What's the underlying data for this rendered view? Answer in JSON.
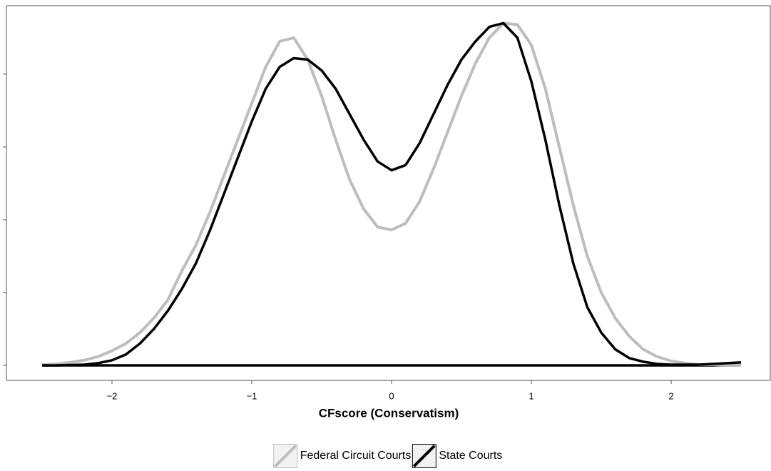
{
  "chart_data": {
    "type": "line",
    "xlabel": "CFscore (Conservatism)",
    "x": [
      -2.5,
      -2.4,
      -2.3,
      -2.2,
      -2.1,
      -2.0,
      -1.9,
      -1.8,
      -1.7,
      -1.6,
      -1.5,
      -1.4,
      -1.3,
      -1.2,
      -1.1,
      -1.0,
      -0.9,
      -0.8,
      -0.7,
      -0.6,
      -0.5,
      -0.4,
      -0.3,
      -0.2,
      -0.1,
      0,
      0.1,
      0.2,
      0.3,
      0.4,
      0.5,
      0.6,
      0.7,
      0.8,
      0.9,
      1.0,
      1.1,
      1.2,
      1.3,
      1.4,
      1.5,
      1.6,
      1.7,
      1.8,
      1.9,
      2.0,
      2.1,
      2.2,
      2.3,
      2.4,
      2.5
    ],
    "series": [
      {
        "name": "Federal Circuit Courts",
        "color": "#bdbdbd",
        "values": [
          0.001,
          0.002,
          0.004,
          0.007,
          0.012,
          0.02,
          0.03,
          0.045,
          0.065,
          0.09,
          0.13,
          0.165,
          0.21,
          0.26,
          0.31,
          0.36,
          0.41,
          0.445,
          0.45,
          0.42,
          0.37,
          0.31,
          0.255,
          0.215,
          0.19,
          0.186,
          0.195,
          0.225,
          0.27,
          0.32,
          0.37,
          0.415,
          0.45,
          0.47,
          0.468,
          0.44,
          0.38,
          0.3,
          0.22,
          0.15,
          0.1,
          0.065,
          0.04,
          0.022,
          0.012,
          0.006,
          0.003,
          0.001,
          0.001,
          0,
          0
        ]
      },
      {
        "name": "State Courts",
        "color": "#000000",
        "values": [
          0,
          0,
          0.0005,
          0.001,
          0.003,
          0.007,
          0.015,
          0.03,
          0.05,
          0.075,
          0.105,
          0.14,
          0.185,
          0.235,
          0.285,
          0.335,
          0.38,
          0.41,
          0.422,
          0.42,
          0.405,
          0.38,
          0.345,
          0.31,
          0.28,
          0.268,
          0.275,
          0.305,
          0.345,
          0.385,
          0.42,
          0.445,
          0.465,
          0.47,
          0.45,
          0.39,
          0.31,
          0.22,
          0.14,
          0.08,
          0.045,
          0.022,
          0.01,
          0.005,
          0.002,
          0.001,
          0.001,
          0.001,
          0.002,
          0.003,
          0.004
        ]
      }
    ],
    "xlim": [
      -2.755,
      2.709
    ],
    "ylim": [
      -0.0206,
      0.494
    ],
    "xticks": [
      {
        "value": -2,
        "label": "−2"
      },
      {
        "value": -1,
        "label": "−1"
      },
      0,
      1,
      2
    ],
    "yticks": [
      0,
      0.1,
      0.2,
      0.3,
      0.4
    ],
    "legend": "bottom"
  }
}
